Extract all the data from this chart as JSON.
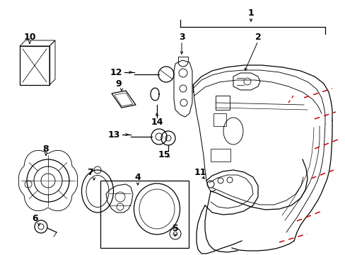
{
  "background_color": "#ffffff",
  "line_color": "#000000",
  "red_line_color": "#cc0000",
  "label_fontsize": 8.5
}
